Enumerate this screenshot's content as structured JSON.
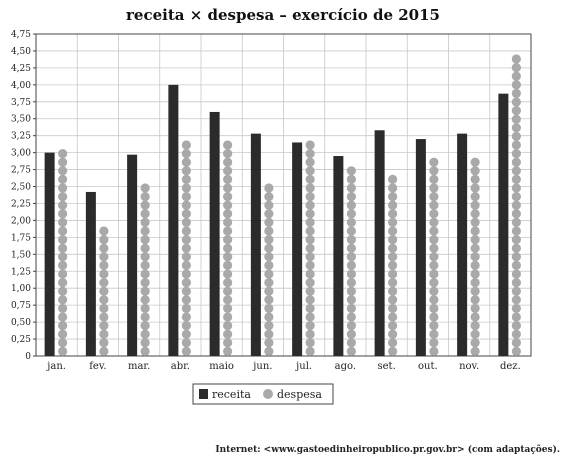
{
  "chart_data": {
    "type": "bar",
    "title": "receita × despesa – exercício de 2015",
    "xlabel": "",
    "ylabel": "",
    "categories": [
      "jan.",
      "fev.",
      "mar.",
      "abr.",
      "maio",
      "jun.",
      "jul.",
      "ago.",
      "set.",
      "out.",
      "nov.",
      "dez."
    ],
    "series": [
      {
        "name": "receita",
        "values": [
          3.0,
          2.42,
          2.97,
          4.0,
          3.6,
          3.28,
          3.15,
          2.95,
          3.33,
          3.2,
          3.28,
          3.87
        ]
      },
      {
        "name": "despesa",
        "values": [
          3.1,
          2.0,
          2.62,
          3.25,
          3.25,
          2.58,
          3.25,
          2.8,
          2.75,
          2.95,
          2.97,
          4.5
        ]
      }
    ],
    "ylim": [
      0,
      4.75
    ],
    "yticks": [
      "0",
      "0,25",
      "0,50",
      "0,75",
      "1,00",
      "1,25",
      "1,50",
      "1,75",
      "2,00",
      "2,25",
      "2,50",
      "2,75",
      "3,00",
      "3,25",
      "3,50",
      "3,75",
      "4,00",
      "4,25",
      "4,50",
      "4,75"
    ],
    "grid": true,
    "legend_position": "bottom-center",
    "colors": {
      "receita": "#2b2b2b",
      "despesa": "#a9a9a9"
    }
  },
  "source": "Internet: <www.gastoedinheiropublico.pr.gov.br> (com adaptações)."
}
